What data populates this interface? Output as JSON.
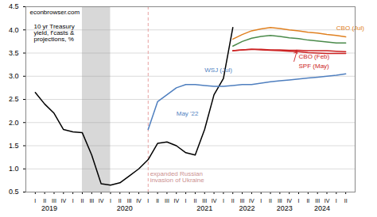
{
  "chart_data": {
    "type": "line",
    "title": "econbrowser.com",
    "box_label": "10 yr Treasury\nyield, f'casts &\nprojections, %",
    "xlim": [
      -1,
      34
    ],
    "xticks": [
      {
        "value": 0,
        "label": "I"
      },
      {
        "value": 1,
        "label": "II"
      },
      {
        "value": 2,
        "label": "III"
      },
      {
        "value": 3,
        "label": "IV"
      },
      {
        "value": 4,
        "label": "I"
      },
      {
        "value": 5,
        "label": "II"
      },
      {
        "value": 6,
        "label": "III"
      },
      {
        "value": 7,
        "label": "IV"
      },
      {
        "value": 8,
        "label": "I"
      },
      {
        "value": 9,
        "label": "II"
      },
      {
        "value": 10,
        "label": "III"
      },
      {
        "value": 11,
        "label": "IV"
      },
      {
        "value": 12,
        "label": "I"
      },
      {
        "value": 13,
        "label": "II"
      },
      {
        "value": 14,
        "label": "III"
      },
      {
        "value": 15,
        "label": "IV"
      },
      {
        "value": 16,
        "label": "I"
      },
      {
        "value": 17,
        "label": "II"
      },
      {
        "value": 18,
        "label": "III"
      },
      {
        "value": 19,
        "label": "IV"
      },
      {
        "value": 20,
        "label": "I"
      },
      {
        "value": 21,
        "label": "II"
      },
      {
        "value": 22,
        "label": "III"
      },
      {
        "value": 23,
        "label": "IV"
      },
      {
        "value": 24,
        "label": "I"
      },
      {
        "value": 25,
        "label": "II"
      },
      {
        "value": 26,
        "label": "III"
      },
      {
        "value": 27,
        "label": "IV"
      },
      {
        "value": 28,
        "label": "I"
      },
      {
        "value": 29,
        "label": "II"
      },
      {
        "value": 30,
        "label": "III"
      },
      {
        "value": 31,
        "label": "IV"
      },
      {
        "value": 32,
        "label": "I"
      },
      {
        "value": 33,
        "label": "II"
      }
    ],
    "year_labels": [
      {
        "value": 1.5,
        "label": "2019"
      },
      {
        "value": 9.5,
        "label": "2020"
      },
      {
        "value": 18.0,
        "label": "2021"
      },
      {
        "value": 22.5,
        "label": "2022"
      },
      {
        "value": 26.5,
        "label": "2023"
      },
      {
        "value": 30.5,
        "label": "2024"
      }
    ],
    "ylim": [
      0.5,
      4.5
    ],
    "yticks": [
      0.5,
      {
        "value": 1.0,
        "label": "1.0"
      },
      1.5,
      {
        "value": 2.0,
        "label": "2.0"
      },
      2.5,
      {
        "value": 3.0,
        "label": "3.0"
      },
      3.5,
      {
        "value": 4.0,
        "label": "4.0"
      },
      4.5
    ],
    "grid": true,
    "series": [
      {
        "color": "#000000",
        "x": [
          0,
          1,
          2,
          3,
          4,
          5,
          6,
          7,
          8,
          9,
          10,
          11,
          12,
          13,
          14,
          15,
          16,
          17,
          18,
          19,
          20,
          21
        ],
        "values": [
          2.65,
          2.4,
          2.2,
          1.85,
          1.8,
          1.78,
          1.3,
          0.68,
          0.65,
          0.7,
          0.85,
          1.0,
          1.2,
          1.55,
          1.58,
          1.5,
          1.35,
          1.3,
          1.85,
          2.6,
          2.95,
          4.05
        ]
      },
      {
        "color": "#4f7fbf",
        "x": [
          12,
          13,
          14,
          15,
          16,
          17,
          18,
          19,
          20,
          21,
          22,
          23,
          24,
          25,
          26,
          27,
          28,
          29,
          30,
          31,
          32,
          33
        ],
        "values": [
          1.85,
          2.45,
          2.6,
          2.75,
          2.82,
          2.82,
          2.8,
          2.78,
          2.78,
          2.8,
          2.82,
          2.82,
          2.85,
          2.88,
          2.9,
          2.92,
          2.94,
          2.96,
          2.98,
          3.0,
          3.02,
          3.05
        ]
      },
      {
        "color": "#4a8a4a",
        "x": [
          21,
          22,
          23,
          24,
          25,
          26,
          27,
          28,
          29,
          30,
          31,
          32,
          33
        ],
        "values": [
          3.65,
          3.75,
          3.82,
          3.86,
          3.88,
          3.86,
          3.83,
          3.81,
          3.78,
          3.76,
          3.74,
          3.72,
          3.72
        ]
      },
      {
        "color": "#cc2222",
        "x": [
          21,
          22,
          23,
          24,
          25,
          26,
          27,
          28,
          29,
          30,
          31,
          32,
          33
        ],
        "values": [
          3.55,
          3.57,
          3.58,
          3.58,
          3.57,
          3.57,
          3.56,
          3.56,
          3.55,
          3.55,
          3.55,
          3.54,
          3.53
        ]
      },
      {
        "color": "#cc2222",
        "x": [
          21,
          22,
          23,
          24,
          25,
          26,
          27,
          28,
          29,
          30,
          31,
          32,
          33
        ],
        "values": [
          3.55,
          3.57,
          3.58,
          3.57,
          3.56,
          3.55,
          3.54,
          3.53,
          3.51,
          3.5,
          3.49,
          3.49,
          3.49
        ]
      },
      {
        "color": "#e08020",
        "x": [
          21,
          22,
          23,
          24,
          25,
          26,
          27,
          28,
          29,
          30,
          31,
          32,
          33
        ],
        "values": [
          3.8,
          3.9,
          3.98,
          4.02,
          4.05,
          4.03,
          4.0,
          3.98,
          3.95,
          3.93,
          3.9,
          3.88,
          3.85
        ]
      }
    ],
    "shaded_regions": [
      {
        "x0": 5,
        "x1": 8,
        "color": "#c8c8c8"
      }
    ],
    "vertical_lines": [
      {
        "x": 12,
        "color": "#e8a0a0",
        "line_style": "dashed"
      }
    ],
    "annotations": [
      {
        "text": "expanded Russian\ninvasion of Ukraine",
        "x": 12.2,
        "y": 0.72,
        "color": "#cc9090"
      },
      {
        "text": "May '22",
        "x": 15,
        "y": 2.15,
        "color": "#4f7fbf"
      },
      {
        "text": "WSJ (Jul)",
        "x": 18,
        "y": 3.18,
        "color": "#4f7fbf"
      },
      {
        "text": "CBO (Feb)",
        "x": 28,
        "y": 3.48,
        "color": "#cc2222"
      },
      {
        "text": "SPF (May)",
        "x": 28,
        "y": 3.28,
        "color": "#cc2222"
      },
      {
        "text": "CBO (Jul)",
        "x": 32,
        "y": 4.1,
        "color": "#e08020"
      }
    ],
    "arrows": [
      {
        "x1": 27.5,
        "y1": 3.5,
        "x2": 27.8,
        "y2": 3.565,
        "color": "#cc2222"
      },
      {
        "x1": 27.5,
        "y1": 3.32,
        "x2": 27.8,
        "y2": 3.535,
        "color": "#cc2222"
      }
    ]
  }
}
